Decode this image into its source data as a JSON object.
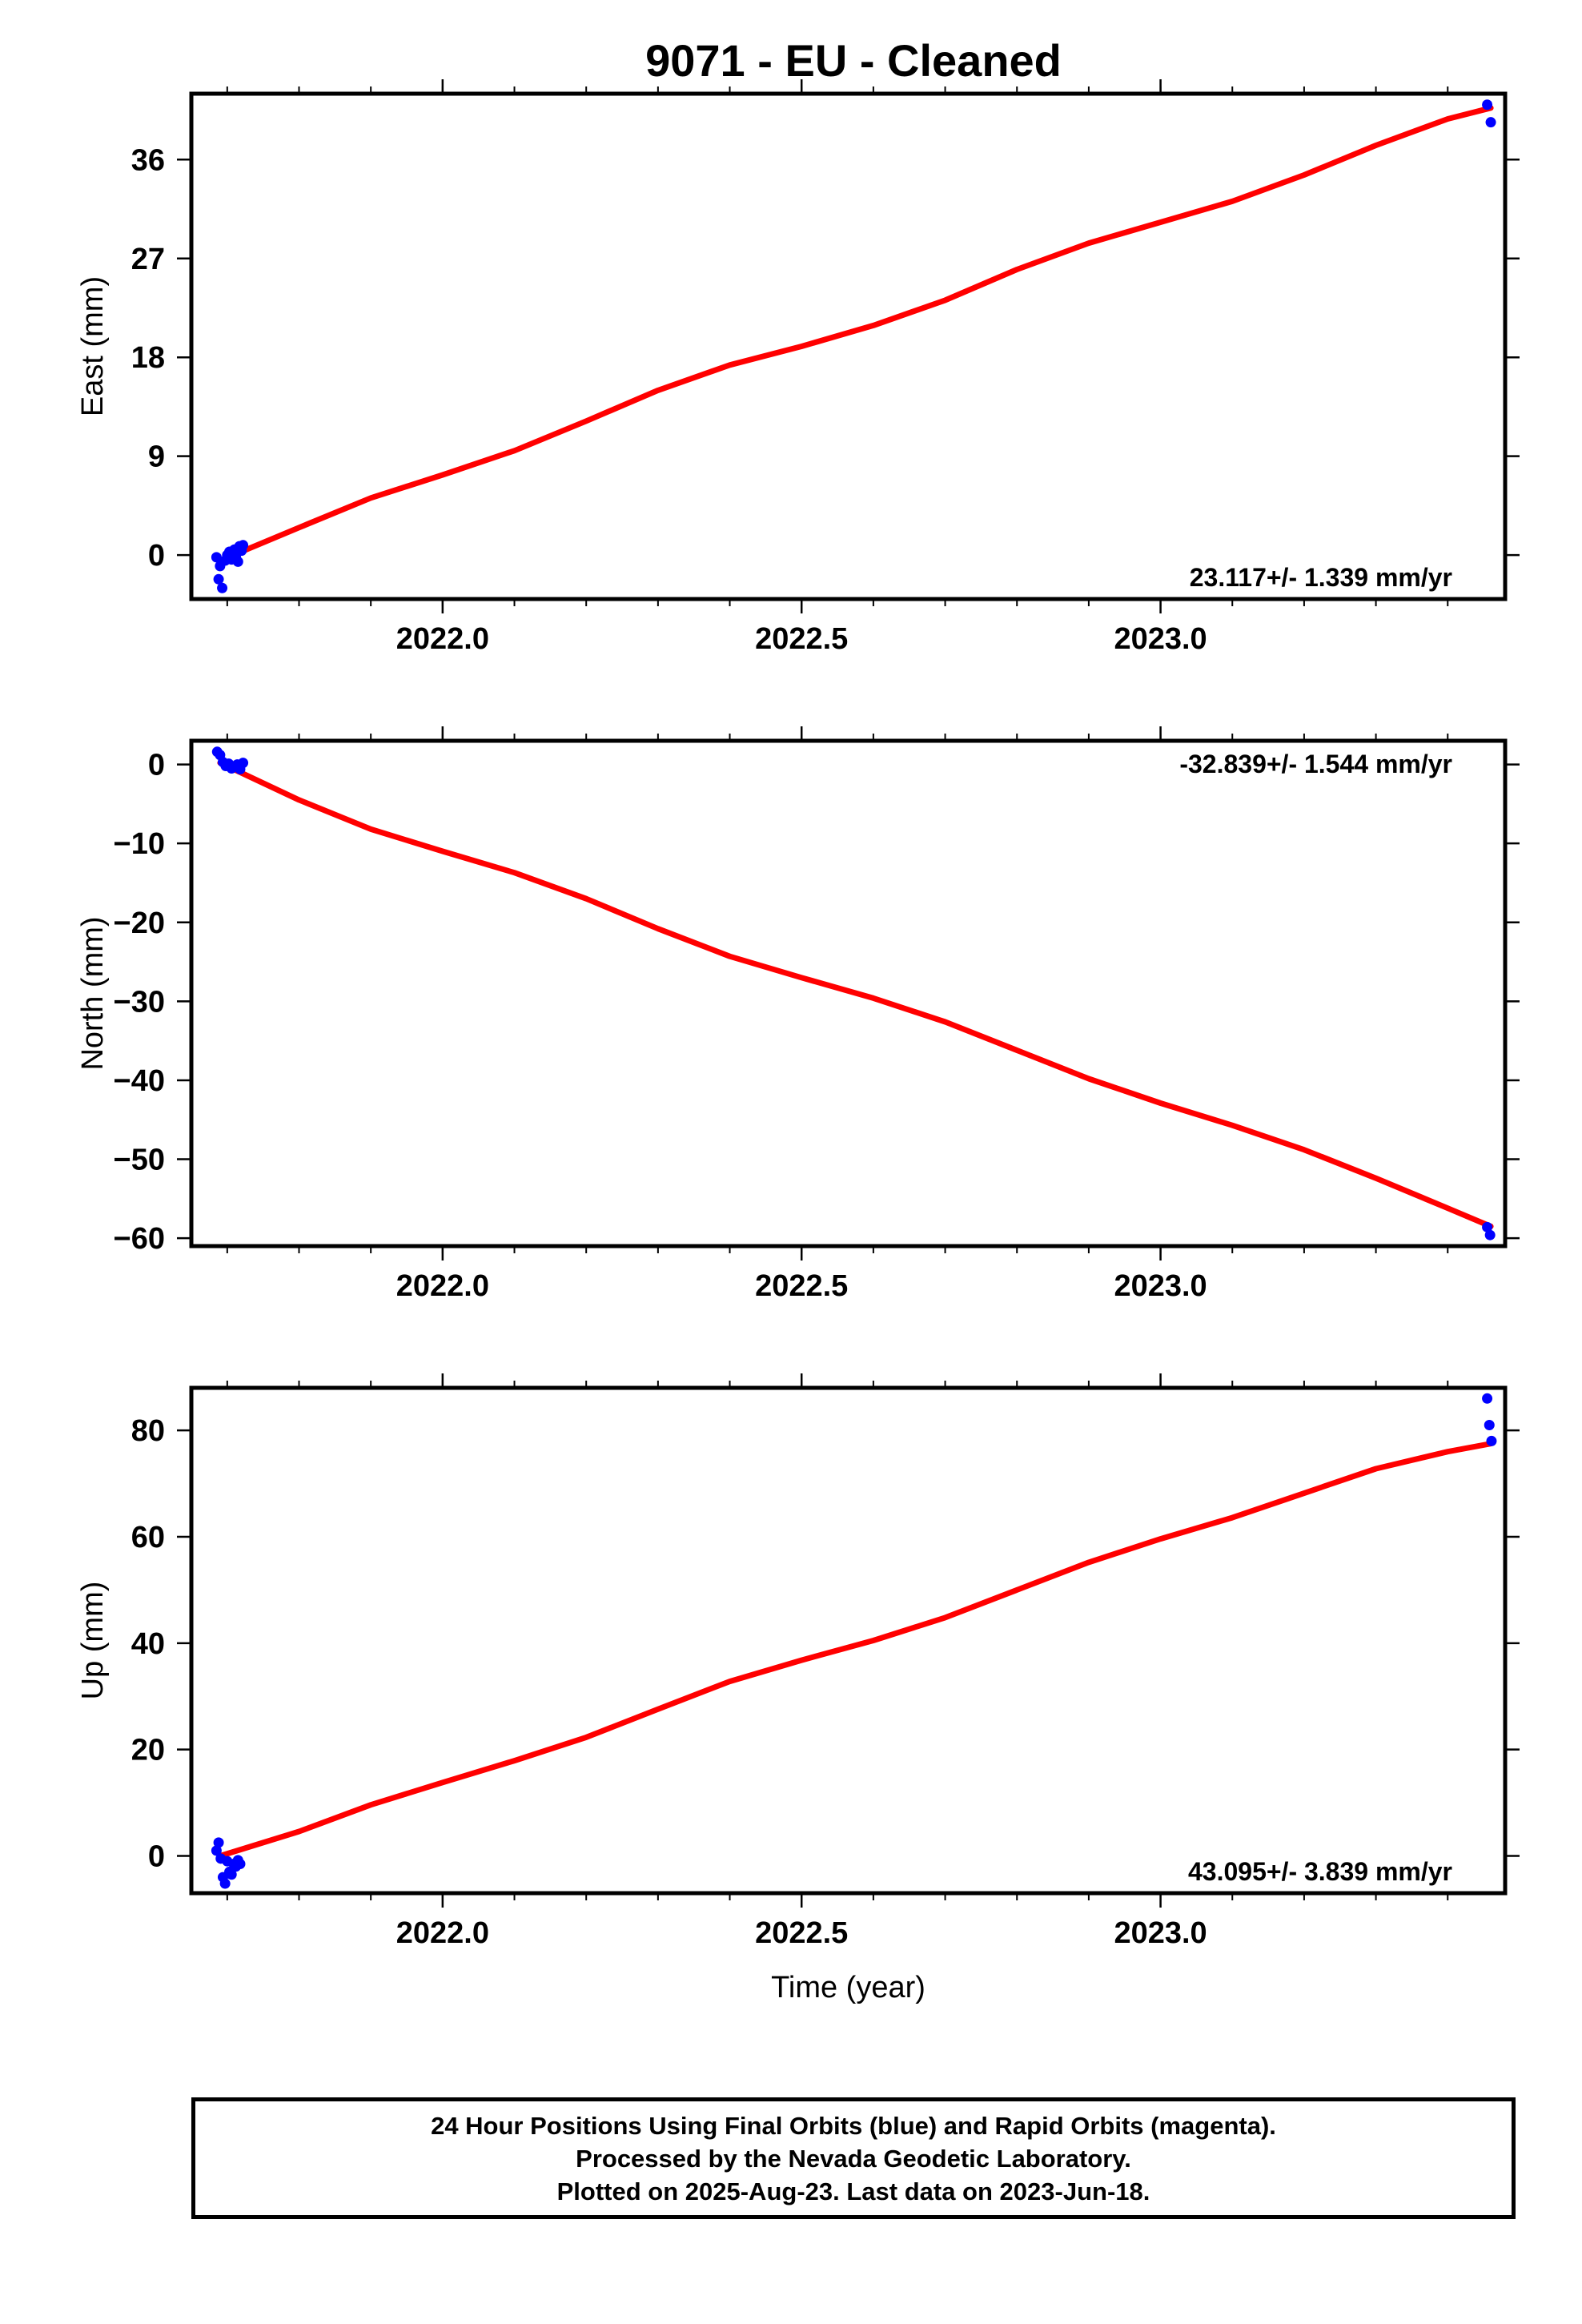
{
  "title": "9071  - EU - Cleaned",
  "colors": {
    "fit_line": "#ff0000",
    "data_points": "#0000ff",
    "frame": "#000000"
  },
  "chart_data": [
    {
      "type": "scatter",
      "panel": "east",
      "ylabel": "East (mm)",
      "xlabel": "",
      "xlim": [
        2021.65,
        2023.48
      ],
      "ylim": [
        -4,
        42
      ],
      "yticks": [
        0,
        9,
        18,
        27,
        36
      ],
      "ytick_labels": [
        "0",
        "9",
        "18",
        "27",
        "36"
      ],
      "xticks": [
        2022.0,
        2022.5,
        2023.0
      ],
      "xtick_labels": [
        "2022.0",
        "2022.5",
        "2023.0"
      ],
      "rate_label": "23.117+/- 1.339 mm/yr",
      "series": [
        {
          "role": "observations",
          "color": "#0000ff",
          "x": [
            2021.685,
            2021.688,
            2021.69,
            2021.693,
            2021.697,
            2021.7,
            2021.703,
            2021.706,
            2021.708,
            2021.71,
            2021.712,
            2021.715,
            2021.717,
            2021.72,
            2021.722,
            2023.455,
            2023.46
          ],
          "y": [
            -0.2,
            -2.2,
            -1.0,
            -3.0,
            -0.5,
            0.0,
            0.3,
            -0.4,
            0.2,
            0.5,
            -0.2,
            -0.6,
            0.8,
            0.4,
            0.9,
            41.0,
            39.4
          ]
        },
        {
          "role": "fit",
          "color": "#ff0000",
          "x": [
            2021.69,
            2021.8,
            2021.9,
            2022.0,
            2022.1,
            2022.2,
            2022.3,
            2022.4,
            2022.5,
            2022.6,
            2022.7,
            2022.8,
            2022.9,
            2023.0,
            2023.1,
            2023.2,
            2023.3,
            2023.4,
            2023.46
          ],
          "y": [
            -0.5,
            2.5,
            5.2,
            7.3,
            9.5,
            12.2,
            15.0,
            17.3,
            19.0,
            20.9,
            23.2,
            26.0,
            28.4,
            30.3,
            32.2,
            34.6,
            37.3,
            39.7,
            40.7
          ]
        }
      ]
    },
    {
      "type": "scatter",
      "panel": "north",
      "ylabel": "North (mm)",
      "xlabel": "",
      "xlim": [
        2021.65,
        2023.48
      ],
      "ylim": [
        -61,
        3
      ],
      "yticks": [
        0,
        -10,
        -20,
        -30,
        -40,
        -50,
        -60
      ],
      "ytick_labels": [
        "0",
        "−10",
        "−20",
        "−30",
        "−40",
        "−50",
        "−60"
      ],
      "xticks": [
        2022.0,
        2022.5,
        2023.0
      ],
      "xtick_labels": [
        "2022.0",
        "2022.5",
        "2023.0"
      ],
      "rate_label": "-32.839+/- 1.544 mm/yr",
      "series": [
        {
          "role": "observations",
          "color": "#0000ff",
          "x": [
            2021.686,
            2021.69,
            2021.694,
            2021.698,
            2021.702,
            2021.706,
            2021.71,
            2021.714,
            2021.718,
            2021.722,
            2023.455,
            2023.459
          ],
          "y": [
            1.6,
            1.2,
            0.3,
            -0.2,
            0.1,
            -0.5,
            -0.3,
            0.0,
            -0.6,
            0.2,
            -58.6,
            -59.6
          ]
        },
        {
          "role": "fit",
          "color": "#ff0000",
          "x": [
            2021.69,
            2021.8,
            2021.9,
            2022.0,
            2022.1,
            2022.2,
            2022.3,
            2022.4,
            2022.5,
            2022.6,
            2022.7,
            2022.8,
            2022.9,
            2023.0,
            2023.1,
            2023.2,
            2023.3,
            2023.4,
            2023.46
          ],
          "y": [
            0.2,
            -4.5,
            -8.2,
            -11.0,
            -13.7,
            -17.0,
            -20.8,
            -24.3,
            -27.0,
            -29.6,
            -32.6,
            -36.2,
            -39.8,
            -42.9,
            -45.7,
            -48.8,
            -52.4,
            -56.2,
            -58.5
          ]
        }
      ]
    },
    {
      "type": "scatter",
      "panel": "up",
      "ylabel": "Up (mm)",
      "xlabel": "Time (year)",
      "xlim": [
        2021.65,
        2023.48
      ],
      "ylim": [
        -7,
        88
      ],
      "yticks": [
        0,
        20,
        40,
        60,
        80
      ],
      "ytick_labels": [
        "0",
        "20",
        "40",
        "60",
        "80"
      ],
      "xticks": [
        2022.0,
        2022.5,
        2023.0
      ],
      "xtick_labels": [
        "2022.0",
        "2022.5",
        "2023.0"
      ],
      "rate_label": "43.095+/- 3.839 mm/yr",
      "series": [
        {
          "role": "observations",
          "color": "#0000ff",
          "x": [
            2021.685,
            2021.688,
            2021.691,
            2021.694,
            2021.697,
            2021.7,
            2021.703,
            2021.706,
            2021.709,
            2021.712,
            2021.715,
            2021.718,
            2023.455,
            2023.458,
            2023.461
          ],
          "y": [
            1.0,
            2.5,
            -0.5,
            -4.0,
            -5.2,
            -1.0,
            -3.0,
            -3.5,
            -1.5,
            -2.0,
            -0.8,
            -1.5,
            86.0,
            81.0,
            78.0
          ]
        },
        {
          "role": "fit",
          "color": "#ff0000",
          "x": [
            2021.69,
            2021.8,
            2021.9,
            2022.0,
            2022.1,
            2022.2,
            2022.3,
            2022.4,
            2022.5,
            2022.6,
            2022.7,
            2022.8,
            2022.9,
            2023.0,
            2023.1,
            2023.2,
            2023.3,
            2023.4,
            2023.46
          ],
          "y": [
            0.0,
            4.6,
            9.6,
            13.8,
            17.9,
            22.3,
            27.6,
            32.8,
            36.8,
            40.5,
            44.8,
            50.0,
            55.2,
            59.6,
            63.6,
            68.2,
            72.8,
            76.0,
            77.5
          ]
        }
      ]
    }
  ],
  "footer": {
    "line1": "24 Hour Positions Using Final Orbits (blue) and Rapid Orbits (magenta).",
    "line2": "Processed by the Nevada Geodetic Laboratory.",
    "line3": "Plotted on 2025-Aug-23. Last data on 2023-Jun-18."
  }
}
